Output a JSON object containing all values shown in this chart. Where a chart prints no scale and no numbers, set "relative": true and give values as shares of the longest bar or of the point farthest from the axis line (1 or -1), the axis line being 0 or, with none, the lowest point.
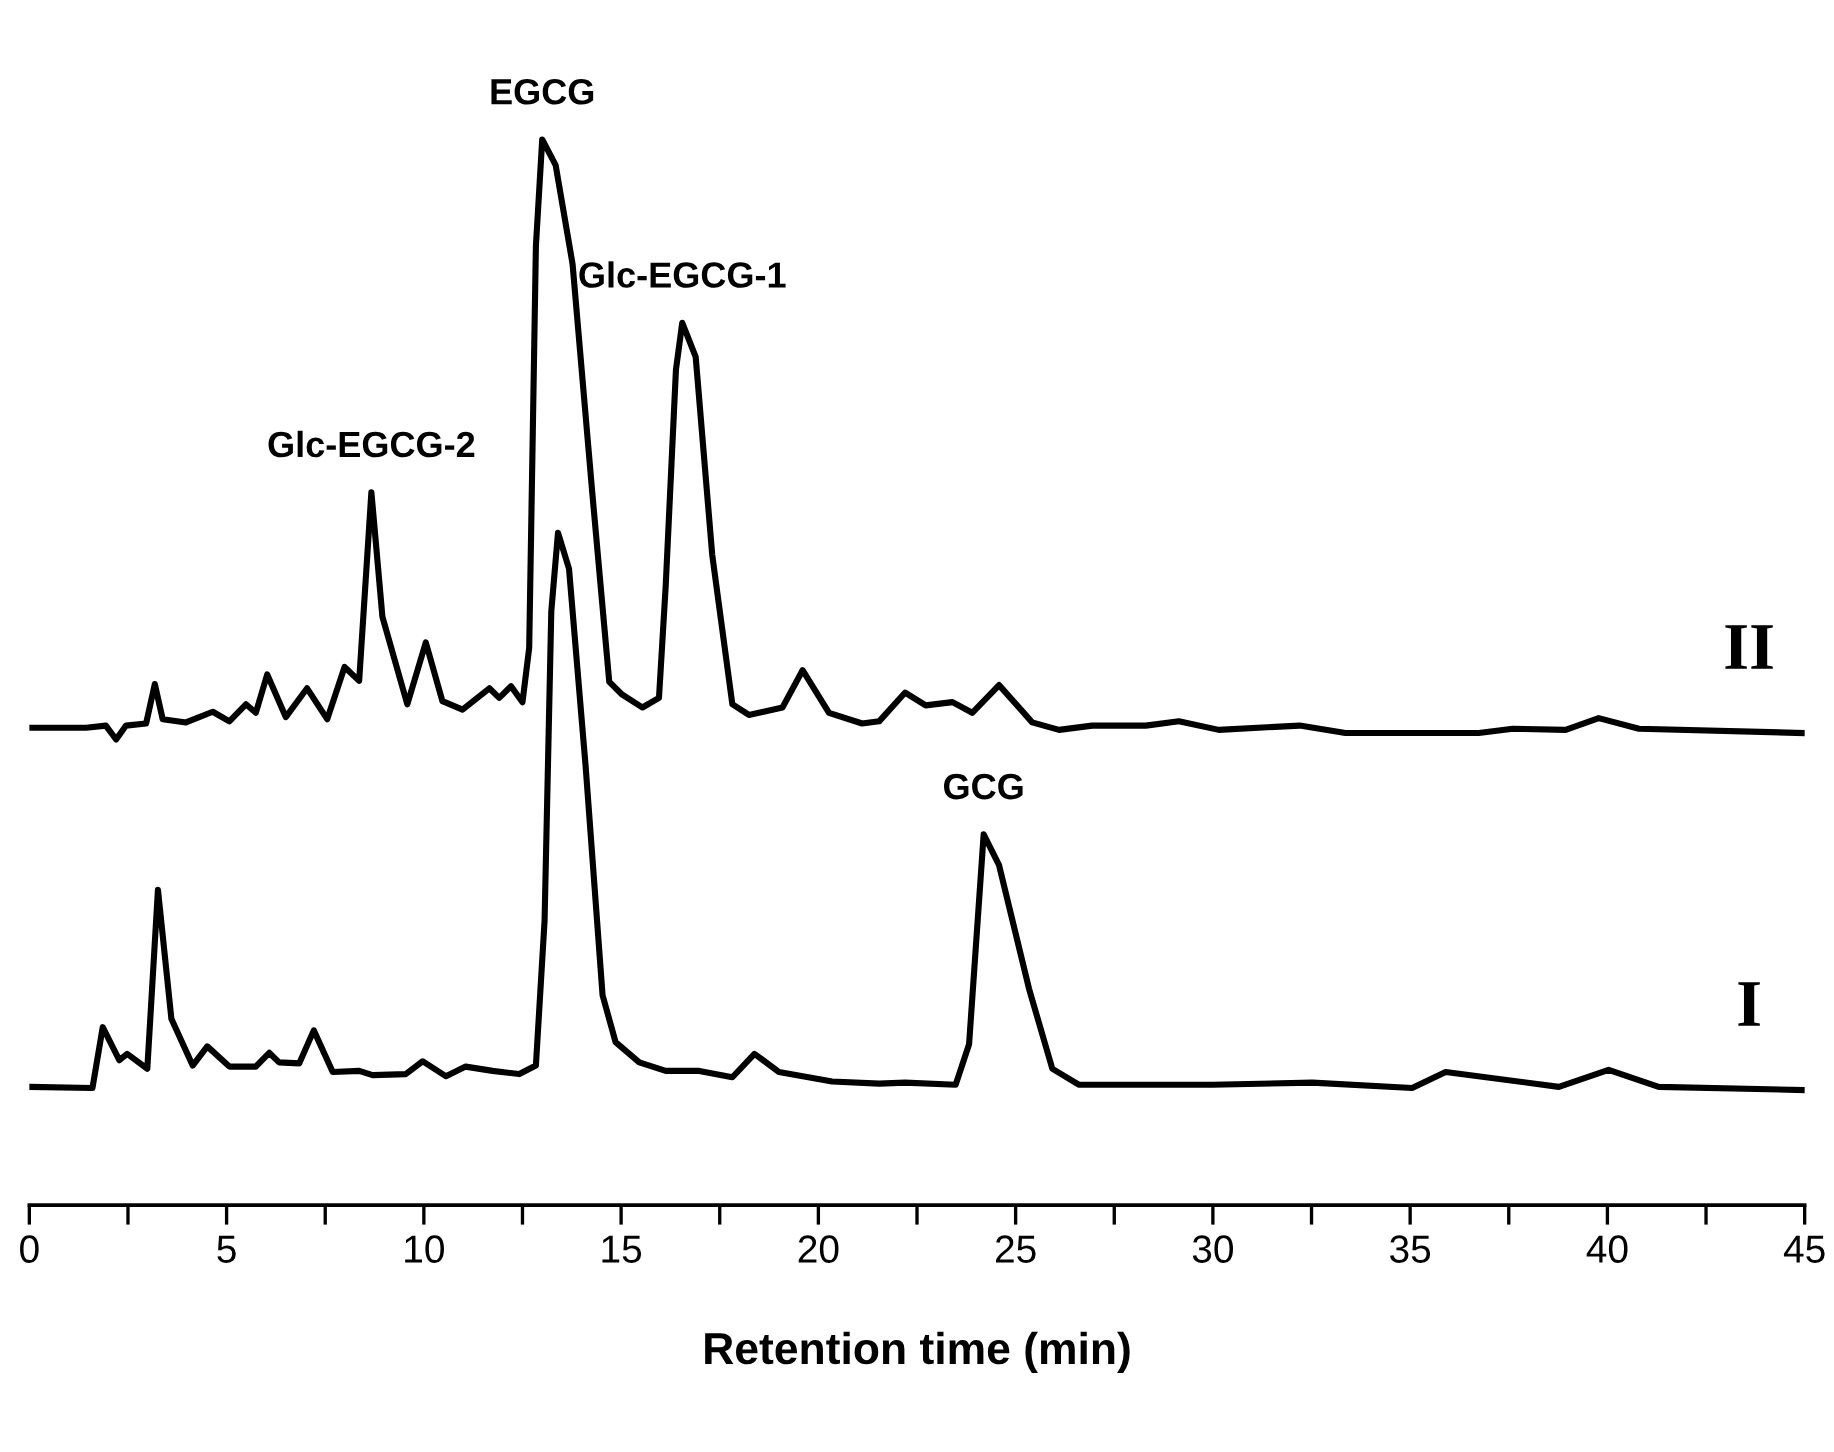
{
  "chart_data": {
    "type": "line",
    "relative": true,
    "xlabel": "Retention time (min)",
    "xlim": [
      0,
      45
    ],
    "xticks": [
      0,
      {
        "value": 2.5,
        "label": null
      },
      5,
      {
        "value": 7.5,
        "label": null
      },
      10,
      {
        "value": 12.5,
        "label": null
      },
      15,
      {
        "value": 17.5,
        "label": null
      },
      20,
      {
        "value": 22.5,
        "label": null
      },
      25,
      {
        "value": 27.5,
        "label": null
      },
      30,
      {
        "value": 32.5,
        "label": null
      },
      35,
      {
        "value": 37.5,
        "label": null
      },
      40,
      {
        "value": 42.5,
        "label": null
      },
      45
    ],
    "grid": false,
    "legend": false,
    "marker": "none",
    "line_style": "solid",
    "series": [
      {
        "name": "II",
        "color": "#000000",
        "x": [
          0,
          1.44,
          1.94,
          2.2,
          2.45,
          2.96,
          3.18,
          3.38,
          3.97,
          4.65,
          5.07,
          5.49,
          5.74,
          6.03,
          6.5,
          7.04,
          7.55,
          7.99,
          8.36,
          8.67,
          8.95,
          9.58,
          10.05,
          10.47,
          10.98,
          11.66,
          11.91,
          12.21,
          12.5,
          12.67,
          12.84,
          13.0,
          13.34,
          13.77,
          14.27,
          14.7,
          15.03,
          15.54,
          15.96,
          16.13,
          16.39,
          16.55,
          16.89,
          17.31,
          17.82,
          18.24,
          19.09,
          19.6,
          20.27,
          21.11,
          21.54,
          22.2,
          22.72,
          23.4,
          23.9,
          24.58,
          25.42,
          26.1,
          26.94,
          28.3,
          29.14,
          30.15,
          32.2,
          33.36,
          36.74,
          37.6,
          38.94,
          39.78,
          40.8,
          45
        ],
        "values": [
          0.448,
          0.448,
          0.45,
          0.437,
          0.45,
          0.452,
          0.489,
          0.456,
          0.453,
          0.463,
          0.454,
          0.47,
          0.462,
          0.498,
          0.458,
          0.485,
          0.456,
          0.505,
          0.492,
          0.669,
          0.552,
          0.47,
          0.528,
          0.473,
          0.465,
          0.485,
          0.476,
          0.487,
          0.472,
          0.523,
          0.9,
          1.0,
          0.976,
          0.883,
          0.668,
          0.491,
          0.479,
          0.467,
          0.476,
          0.581,
          0.784,
          0.828,
          0.796,
          0.61,
          0.47,
          0.46,
          0.467,
          0.502,
          0.462,
          0.452,
          0.454,
          0.481,
          0.469,
          0.472,
          0.462,
          0.488,
          0.453,
          0.446,
          0.45,
          0.45,
          0.454,
          0.446,
          0.45,
          0.443,
          0.443,
          0.447,
          0.446,
          0.457,
          0.447,
          0.443
        ]
      },
      {
        "name": "I",
        "color": "#000000",
        "x": [
          0,
          1.6,
          1.86,
          2.28,
          2.48,
          2.99,
          3.26,
          3.6,
          4.14,
          4.51,
          5.07,
          5.74,
          6.08,
          6.33,
          6.84,
          7.21,
          7.69,
          8.36,
          8.7,
          9.54,
          9.97,
          10.56,
          11.06,
          11.74,
          12.42,
          12.84,
          13.06,
          13.23,
          13.4,
          13.68,
          14.1,
          14.53,
          14.86,
          15.46,
          16.13,
          16.98,
          17.82,
          18.38,
          19.0,
          20.35,
          21.54,
          22.2,
          23.48,
          23.82,
          24.19,
          24.58,
          25.34,
          25.93,
          26.6,
          29.98,
          32.52,
          35.05,
          35.9,
          38.77,
          40.03,
          41.3,
          45
        ],
        "values": [
          0.111,
          0.11,
          0.167,
          0.136,
          0.142,
          0.128,
          0.296,
          0.175,
          0.131,
          0.149,
          0.13,
          0.13,
          0.143,
          0.134,
          0.133,
          0.164,
          0.125,
          0.126,
          0.122,
          0.123,
          0.135,
          0.121,
          0.13,
          0.126,
          0.123,
          0.131,
          0.267,
          0.557,
          0.631,
          0.597,
          0.412,
          0.197,
          0.153,
          0.134,
          0.126,
          0.126,
          0.12,
          0.142,
          0.125,
          0.116,
          0.114,
          0.115,
          0.113,
          0.151,
          0.348,
          0.319,
          0.203,
          0.128,
          0.113,
          0.113,
          0.115,
          0.11,
          0.125,
          0.111,
          0.127,
          0.111,
          0.108
        ]
      }
    ],
    "annotations": [
      {
        "text": "Glc-EGCG-2",
        "x": 8.67,
        "y": 0.669
      },
      {
        "text": "EGCG",
        "x": 13.0,
        "y": 1.0
      },
      {
        "text": "Glc-EGCG-1",
        "x": 16.55,
        "y": 0.828
      },
      {
        "text": "GCG",
        "x": 24.19,
        "y": 0.348
      }
    ]
  }
}
